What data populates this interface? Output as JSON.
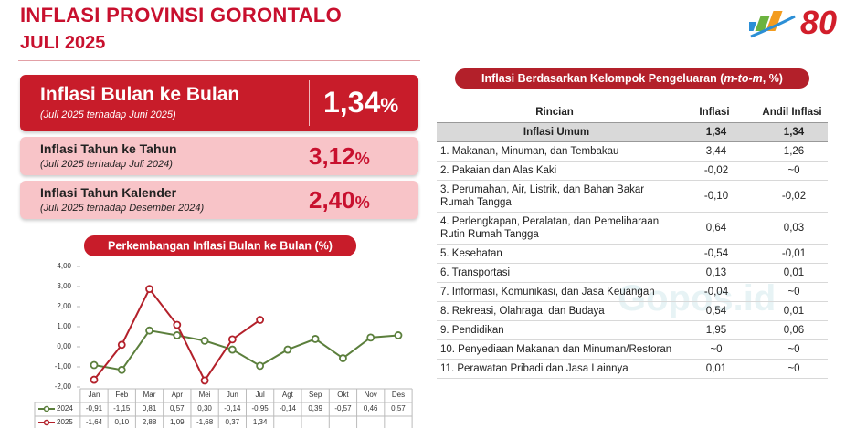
{
  "header": {
    "title": "INFLASI PROVINSI GORONTALO",
    "subtitle": "JULI 2025",
    "logo_text": "80"
  },
  "cards": [
    {
      "title": "Inflasi Bulan ke Bulan",
      "note": "(Juli 2025 terhadap Juni 2025)",
      "value": "1,34",
      "unit": "%"
    },
    {
      "title": "Inflasi Tahun ke Tahun",
      "note": "(Juli 2025 terhadap Juli 2024)",
      "value": "3,12",
      "unit": "%"
    },
    {
      "title": "Inflasi Tahun Kalender",
      "note": "(Juli 2025 terhadap Desember 2024)",
      "value": "2,40",
      "unit": "%"
    }
  ],
  "chart_data": {
    "type": "line",
    "title": "Perkembangan Inflasi Bulan ke Bulan (%)",
    "categories": [
      "Jan",
      "Feb",
      "Mar",
      "Apr",
      "Mei",
      "Jun",
      "Jul",
      "Agt",
      "Sep",
      "Okt",
      "Nov",
      "Des"
    ],
    "series": [
      {
        "name": "2024",
        "color": "#5b7f3c",
        "values": [
          -0.91,
          -1.15,
          0.81,
          0.57,
          0.3,
          -0.14,
          -0.95,
          -0.14,
          0.39,
          -0.57,
          0.46,
          0.57
        ],
        "value_labels": [
          "-0,91",
          "-1,15",
          "0,81",
          "0,57",
          "0,30",
          "-0,14",
          "-0,95",
          "-0,14",
          "0,39",
          "-0,57",
          "0,46",
          "0,57"
        ]
      },
      {
        "name": "2025",
        "color": "#b3202a",
        "values": [
          -1.64,
          0.1,
          2.88,
          1.09,
          -1.68,
          0.37,
          1.34,
          null,
          null,
          null,
          null,
          null
        ],
        "value_labels": [
          "-1,64",
          "0,10",
          "2,88",
          "1,09",
          "-1,68",
          "0,37",
          "1,34",
          null,
          null,
          null,
          null,
          null
        ]
      }
    ],
    "ylim": [
      -2,
      4
    ],
    "yticks": [
      {
        "value": 4,
        "label": "4,00"
      },
      {
        "value": 3,
        "label": "3,00"
      },
      {
        "value": 2,
        "label": "2,00"
      },
      {
        "value": 1,
        "label": "1,00"
      },
      {
        "value": 0,
        "label": "0,00"
      },
      {
        "value": -1,
        "label": "-1,00"
      },
      {
        "value": -2,
        "label": "-2,00"
      }
    ],
    "grid": false
  },
  "table": {
    "title": "Inflasi Berdasarkan Kelompok Pengeluaran (",
    "title_italic": "m-to-m",
    "title_end": ", %)",
    "columns": [
      "Rincian",
      "Inflasi",
      "Andil Inflasi"
    ],
    "rows": [
      [
        "Inflasi Umum",
        "1,34",
        "1,34"
      ],
      [
        "1. Makanan, Minuman, dan Tembakau",
        "3,44",
        "1,26"
      ],
      [
        "2. Pakaian dan Alas Kaki",
        "-0,02",
        "~0"
      ],
      [
        "3. Perumahan, Air, Listrik, dan Bahan Bakar Rumah Tangga",
        "-0,10",
        "-0,02"
      ],
      [
        "4. Perlengkapan, Peralatan, dan Pemeliharaan Rutin Rumah Tangga",
        "0,64",
        "0,03"
      ],
      [
        "5. Kesehatan",
        "-0,54",
        "-0,01"
      ],
      [
        "6. Transportasi",
        "0,13",
        "0,01"
      ],
      [
        "7. Informasi, Komunikasi, dan Jasa Keuangan",
        "-0,04",
        "~0"
      ],
      [
        "8. Rekreasi, Olahraga, dan Budaya",
        "0,54",
        "0,01"
      ],
      [
        "9. Pendidikan",
        "1,95",
        "0,06"
      ],
      [
        "10. Penyediaan Makanan dan Minuman/Restoran",
        "~0",
        "~0"
      ],
      [
        "11. Perawatan Pribadi dan Jasa Lainnya",
        "0,01",
        "~0"
      ]
    ]
  },
  "watermark": "Gopos.id"
}
